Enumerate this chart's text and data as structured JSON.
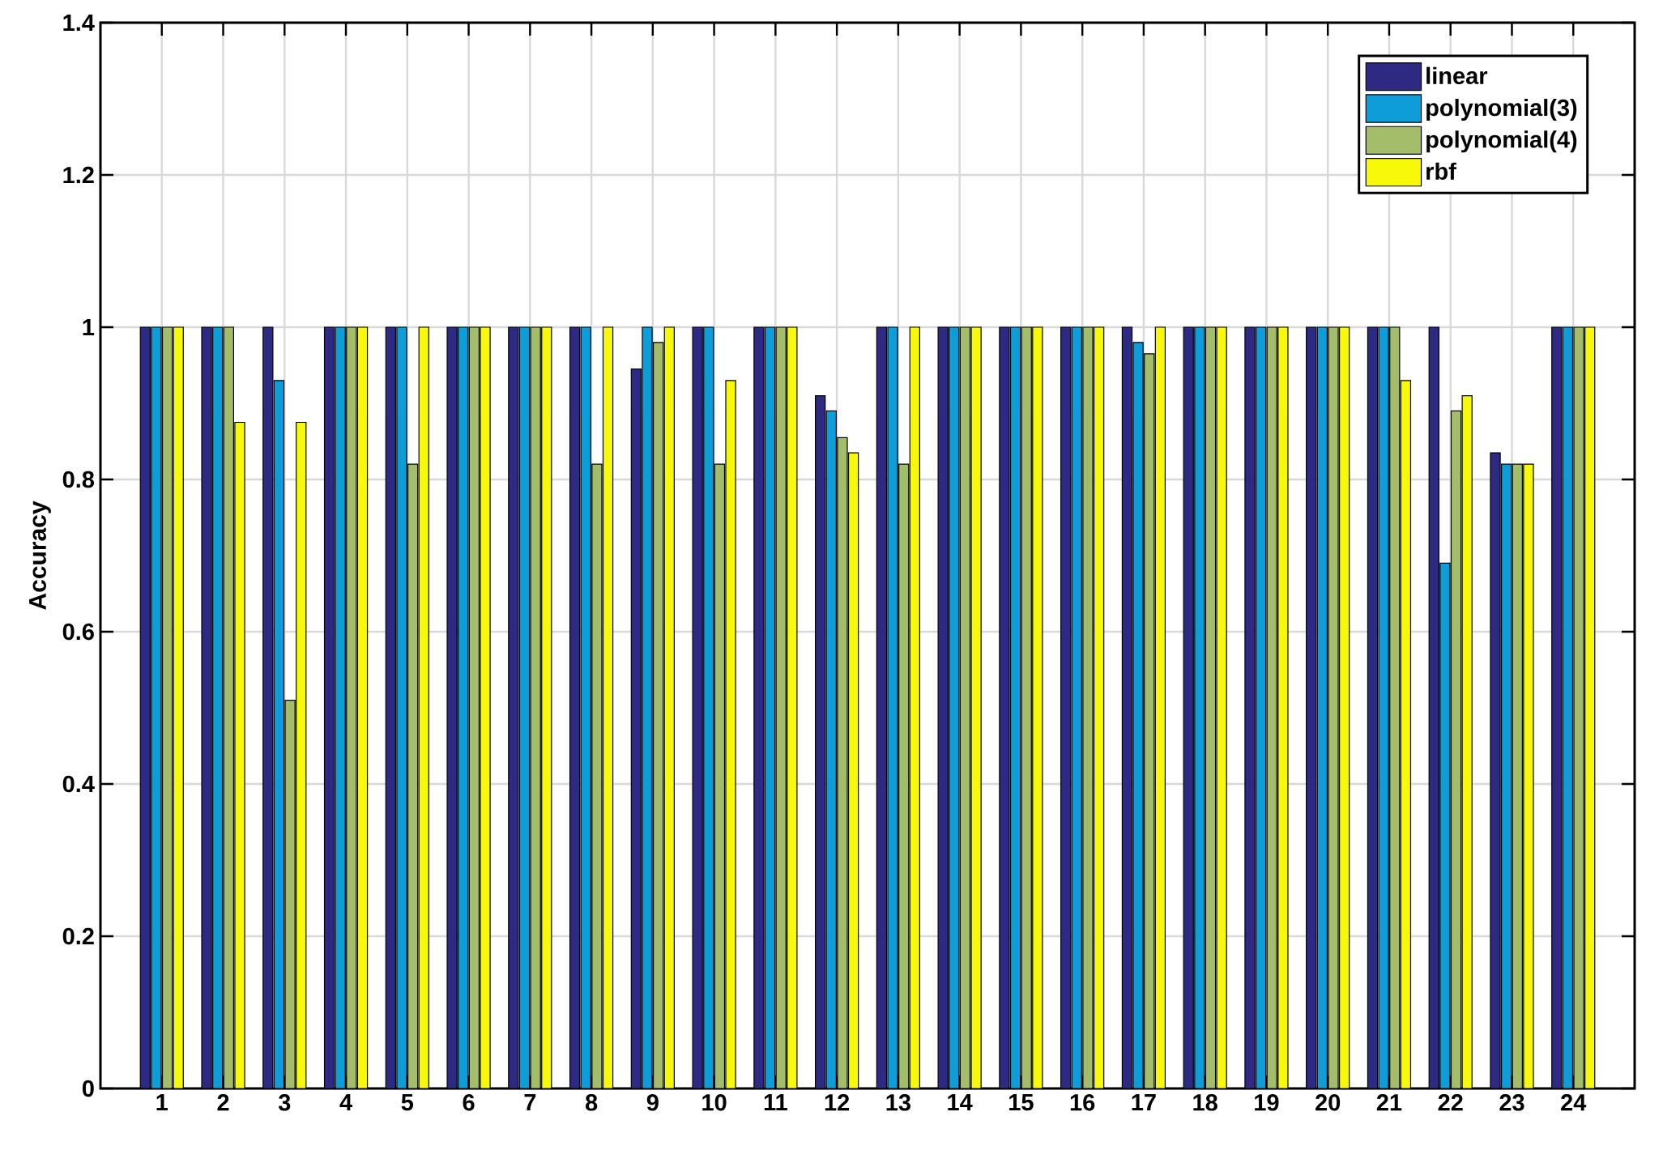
{
  "chart_data": {
    "type": "bar",
    "ylabel": "Accuracy",
    "categories": [
      "1",
      "2",
      "3",
      "4",
      "5",
      "6",
      "7",
      "8",
      "9",
      "10",
      "11",
      "12",
      "13",
      "14",
      "15",
      "16",
      "17",
      "18",
      "19",
      "20",
      "21",
      "22",
      "23",
      "24"
    ],
    "series": [
      {
        "name": "linear",
        "color": "#2e2a84",
        "values": [
          1,
          1,
          1,
          1,
          1,
          1,
          1,
          1,
          0.945,
          1,
          1,
          0.91,
          1,
          1,
          1,
          1,
          1,
          1,
          1,
          1,
          1,
          1,
          0.835,
          1
        ]
      },
      {
        "name": "polynomial(3)",
        "color": "#0e9dd8",
        "values": [
          1,
          1,
          0.93,
          1,
          1,
          1,
          1,
          1,
          1,
          1,
          1,
          0.89,
          1,
          1,
          1,
          1,
          0.98,
          1,
          1,
          1,
          1,
          0.69,
          0.82,
          1
        ]
      },
      {
        "name": "polynomial(4)",
        "color": "#a3bd6a",
        "values": [
          1,
          1,
          0.51,
          1,
          0.82,
          1,
          1,
          0.82,
          0.98,
          0.82,
          1,
          0.855,
          0.82,
          1,
          1,
          1,
          0.965,
          1,
          1,
          1,
          1,
          0.89,
          0.82,
          1
        ]
      },
      {
        "name": "rbf",
        "color": "#f8f80a",
        "values": [
          1,
          0.875,
          0.875,
          1,
          1,
          1,
          1,
          1,
          1,
          0.93,
          1,
          0.835,
          1,
          1,
          1,
          1,
          1,
          1,
          1,
          1,
          0.93,
          0.91,
          0.82,
          1
        ]
      }
    ],
    "ylim": [
      0,
      1.4
    ],
    "yticks": [
      0,
      0.2,
      0.4,
      0.6,
      0.8,
      1,
      1.2,
      1.4
    ],
    "grid": true,
    "legend": "top right"
  }
}
